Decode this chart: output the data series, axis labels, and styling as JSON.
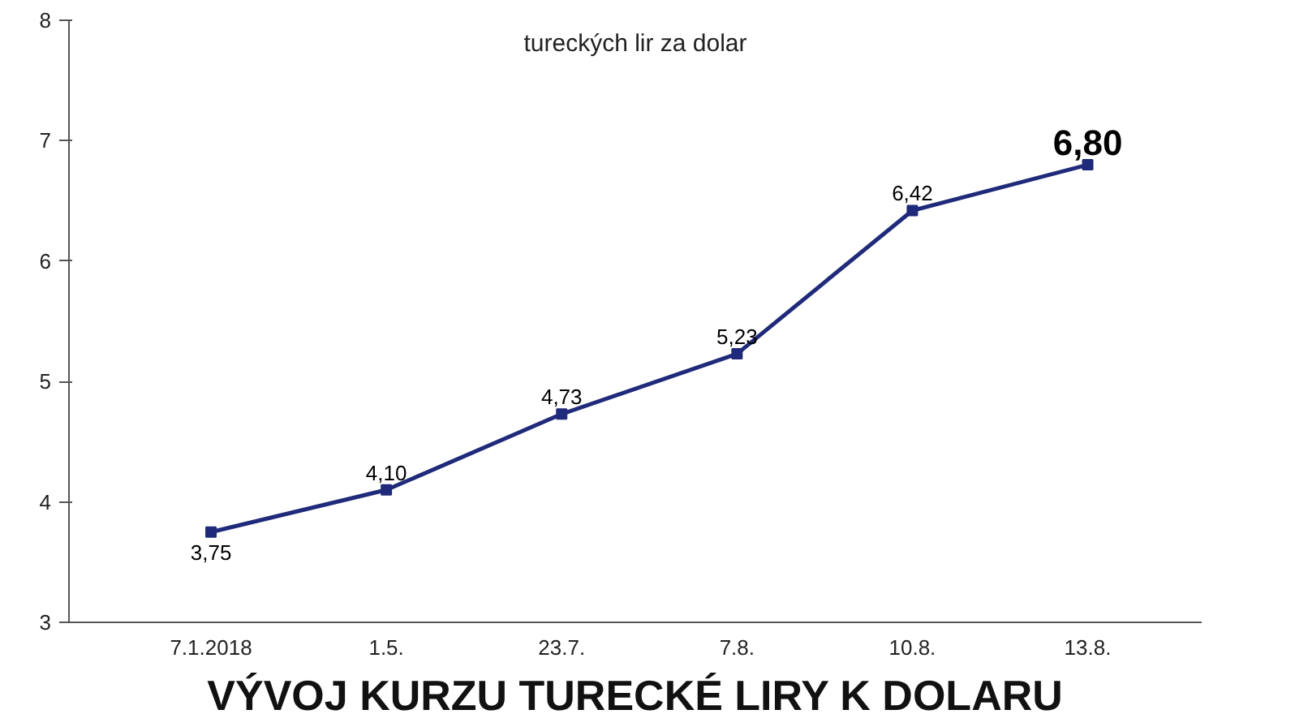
{
  "chart_data": {
    "type": "line",
    "title": "VÝVOJ KURZU TURECKÉ LIRY K DOLARU",
    "subtitle": "tureckých lir za dolar",
    "categories": [
      "7.1.2018",
      "1.5.",
      "23.7.",
      "7.8.",
      "10.8.",
      "13.8."
    ],
    "series": [
      {
        "color": "#1f2a7a",
        "values": [
          3.75,
          4.1,
          4.73,
          5.23,
          6.42,
          6.8
        ],
        "value_labels": [
          "3,75",
          "4,10",
          "4,73",
          "5,23",
          "6,42",
          "6,80"
        ]
      }
    ],
    "ylim": [
      3,
      8
    ],
    "yticks": [
      3,
      4,
      5,
      6,
      7,
      8
    ],
    "grid": false,
    "marker": "square",
    "line_style": "solid"
  }
}
